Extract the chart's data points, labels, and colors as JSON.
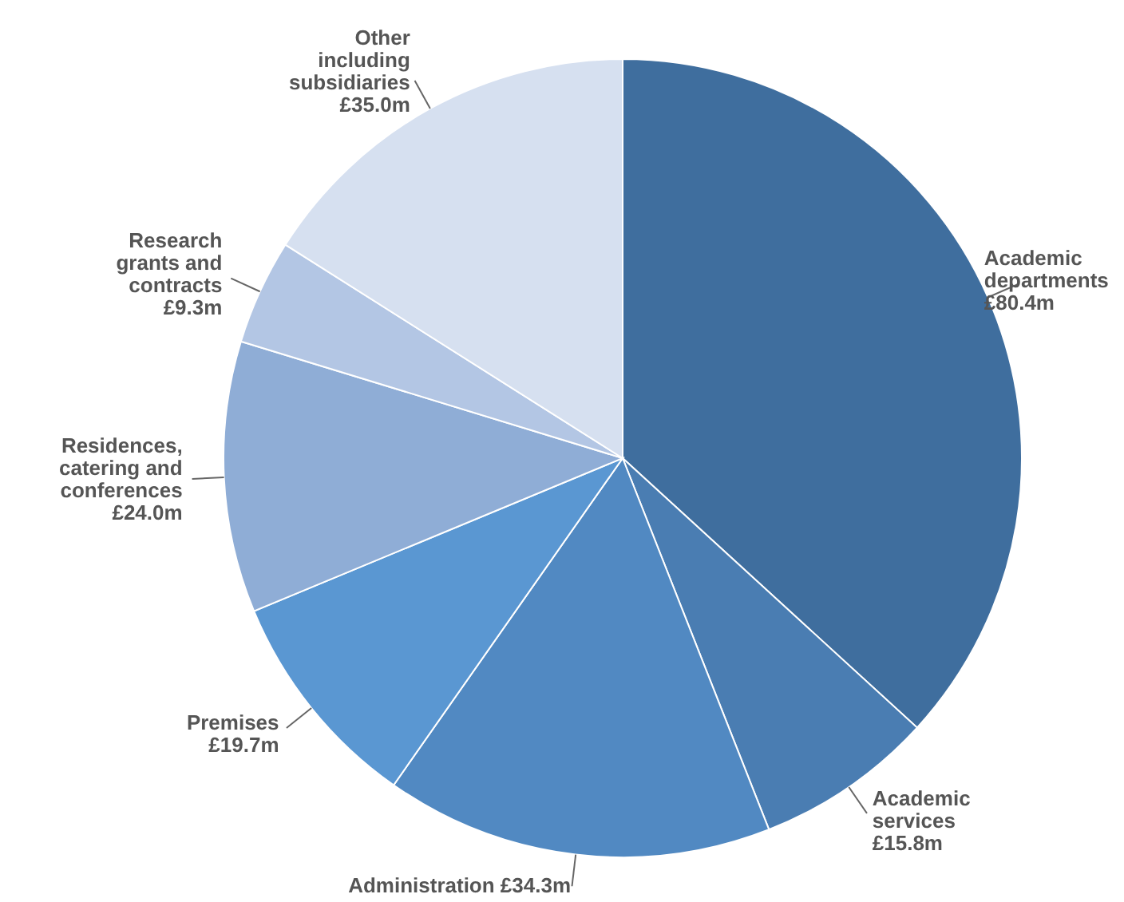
{
  "chart_data": {
    "type": "pie",
    "categories": [
      "Academic departments",
      "Academic services",
      "Administration",
      "Premises",
      "Residences, catering and conferences",
      "Research grants and contracts",
      "Other including subsidiaries"
    ],
    "values": [
      80.4,
      15.8,
      34.3,
      19.7,
      24.0,
      9.3,
      35.0
    ],
    "value_labels": [
      "£80.4m",
      "£15.8m",
      "£34.3m",
      "£19.7m",
      "£24.0m",
      "£9.3m",
      "£35.0m"
    ],
    "colors": [
      "#3f6e9e",
      "#4a7db2",
      "#5189c2",
      "#5a97d2",
      "#8fadd6",
      "#b3c6e4",
      "#d6e0f0"
    ]
  }
}
